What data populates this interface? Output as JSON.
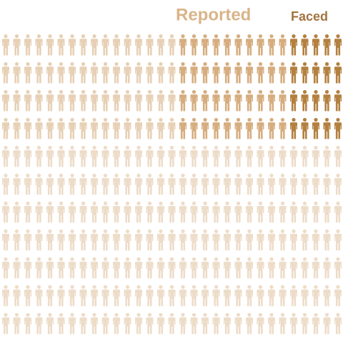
{
  "labels": {
    "reported": "Reported",
    "faced": "Faced"
  }
}
